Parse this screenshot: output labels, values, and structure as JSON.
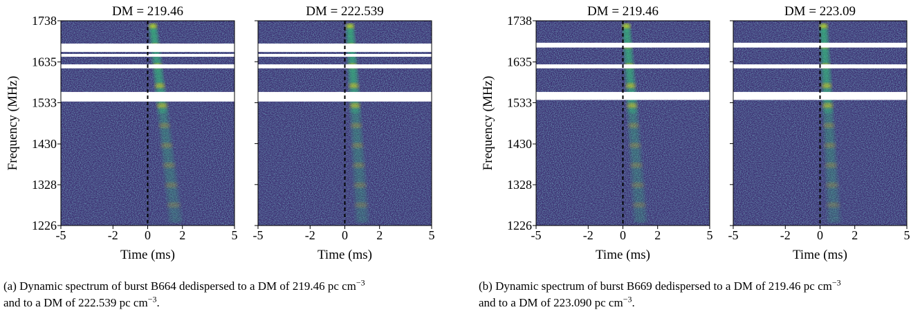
{
  "chart_data": [
    {
      "type": "heatmap",
      "title": "DM = 219.46",
      "xlabel": "Time (ms)",
      "ylabel": "Frequency (MHz)",
      "xlim": [
        -5,
        5
      ],
      "xticks": [
        -5,
        -2,
        0,
        2,
        5
      ],
      "ylim": [
        1226,
        1738
      ],
      "yticks": [
        1226,
        1328,
        1430,
        1533,
        1635,
        1738
      ],
      "masked_ranges": [
        [
          1660,
          1681
        ],
        [
          1648,
          1655
        ],
        [
          1619,
          1629
        ],
        [
          1536,
          1560
        ]
      ],
      "vline_x": 0
    },
    {
      "type": "heatmap",
      "title": "DM = 222.539",
      "xlabel": "Time (ms)",
      "xlim": [
        -5,
        5
      ],
      "xticks": [
        -5,
        -2,
        0,
        2,
        5
      ],
      "ylim": [
        1226,
        1738
      ],
      "masked_ranges": [
        [
          1660,
          1681
        ],
        [
          1648,
          1655
        ],
        [
          1619,
          1629
        ],
        [
          1536,
          1560
        ]
      ],
      "vline_x": 0
    },
    {
      "type": "heatmap",
      "title": "DM = 219.46",
      "xlabel": "Time (ms)",
      "ylabel": "Frequency (MHz)",
      "xlim": [
        -5,
        5
      ],
      "xticks": [
        -5,
        -2,
        0,
        2,
        5
      ],
      "ylim": [
        1226,
        1738
      ],
      "yticks": [
        1226,
        1328,
        1430,
        1533,
        1635,
        1738
      ],
      "masked_ranges": [
        [
          1671,
          1683
        ],
        [
          1619,
          1629
        ],
        [
          1540,
          1560
        ]
      ],
      "vline_x": 0
    },
    {
      "type": "heatmap",
      "title": "DM = 223.09",
      "xlabel": "Time (ms)",
      "xlim": [
        -5,
        5
      ],
      "xticks": [
        -5,
        -2,
        0,
        2,
        5
      ],
      "ylim": [
        1226,
        1738
      ],
      "masked_ranges": [
        [
          1671,
          1683
        ],
        [
          1619,
          1629
        ],
        [
          1540,
          1560
        ]
      ],
      "vline_x": 0
    }
  ],
  "captions": [
    {
      "line_1": "(a) Dynamic spectrum of burst B664 dedispersed to a DM of 219.46 pc cm",
      "sup_1": "−3",
      "line_2": "and to a DM of 222.539 pc cm",
      "sup_2": "−3",
      "end": "."
    },
    {
      "line_1": "(b) Dynamic spectrum of burst B669 dedispersed to a DM of 219.46 pc cm",
      "sup_1": "−3",
      "line_2": "and to a DM of 223.090 pc cm",
      "sup_2": "−3",
      "end": "."
    }
  ]
}
